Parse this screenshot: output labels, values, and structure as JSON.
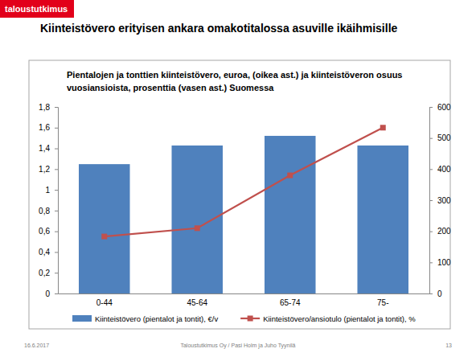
{
  "header": {
    "logo": "taloustutkimus",
    "title": "Kiinteistövero erityisen ankara omakotitalossa asuville ikäihmisille"
  },
  "footer": {
    "date": "16.6.2017",
    "source": "Taloustutkimus Oy / Pasi Holm ja Juho Tyynilä",
    "page": "13"
  },
  "chart_data": {
    "type": "bar",
    "title": "Pientalojen ja tonttien kiinteistövero, euroa, (oikea ast.) ja kiinteistöveron osuus vuosiansioista, prosenttia (vasen ast.) Suomessa",
    "categories": [
      "0-44",
      "45-64",
      "65-74",
      "75-"
    ],
    "series": [
      {
        "name": "Kiinteistövero (pientalot ja tontit), €/v",
        "type": "bar",
        "axis": "y2",
        "color": "#4f81bd",
        "values": [
          416,
          476,
          507,
          476
        ]
      },
      {
        "name": "Kiinteistövero/ansiotulo (pientalot ja tontit), %",
        "type": "line",
        "color": "#c0504d",
        "marker": "square",
        "values": [
          0.55,
          0.63,
          1.14,
          1.6
        ]
      }
    ],
    "ylim": [
      0,
      1.8
    ],
    "yticks": [
      0,
      {
        "value": 0.2,
        "label": "0,2"
      },
      {
        "value": 0.4,
        "label": "0,4"
      },
      {
        "value": 0.6,
        "label": "0,6"
      },
      {
        "value": 0.8,
        "label": "0,8"
      },
      1,
      {
        "value": 1.2,
        "label": "1,2"
      },
      {
        "value": 1.4,
        "label": "1,4"
      },
      {
        "value": 1.6,
        "label": "1,6"
      },
      {
        "value": 1.8,
        "label": "1,8"
      }
    ],
    "y2lim": [
      0,
      600
    ],
    "y2ticks": [
      0,
      100,
      200,
      300,
      400,
      500,
      600
    ],
    "grid": false,
    "legend": "bottom"
  }
}
